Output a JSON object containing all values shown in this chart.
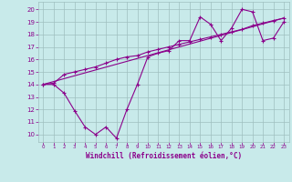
{
  "xlabel": "Windchill (Refroidissement éolien,°C)",
  "xlim": [
    -0.5,
    23.5
  ],
  "ylim": [
    9.4,
    20.6
  ],
  "xticks": [
    0,
    1,
    2,
    3,
    4,
    5,
    6,
    7,
    8,
    9,
    10,
    11,
    12,
    13,
    14,
    15,
    16,
    17,
    18,
    19,
    20,
    21,
    22,
    23
  ],
  "yticks": [
    10,
    11,
    12,
    13,
    14,
    15,
    16,
    17,
    18,
    19,
    20
  ],
  "bg_color": "#c8eaea",
  "line_color": "#8b008b",
  "grid_color": "#9fbfbf",
  "series1_x": [
    0,
    1,
    2,
    3,
    4,
    5,
    6,
    7,
    8,
    9,
    10,
    11,
    12,
    13,
    14,
    15,
    16,
    17,
    18,
    19,
    20,
    21,
    22,
    23
  ],
  "series1_y": [
    14.0,
    14.0,
    13.3,
    11.9,
    10.6,
    10.0,
    10.6,
    9.7,
    12.0,
    14.0,
    16.2,
    16.5,
    16.7,
    17.5,
    17.5,
    19.4,
    18.8,
    17.5,
    18.5,
    20.0,
    19.8,
    17.5,
    17.7,
    19.0
  ],
  "series2_x": [
    0,
    1,
    2,
    3,
    4,
    5,
    6,
    7,
    8,
    9,
    10,
    11,
    12,
    13,
    14,
    15,
    16,
    17,
    18,
    19,
    20,
    21,
    22,
    23
  ],
  "series2_y": [
    14.0,
    14.1,
    14.8,
    15.0,
    15.2,
    15.4,
    15.7,
    16.0,
    16.2,
    16.3,
    16.6,
    16.8,
    17.0,
    17.2,
    17.4,
    17.6,
    17.8,
    18.0,
    18.2,
    18.4,
    18.7,
    18.9,
    19.1,
    19.3
  ],
  "series3_x": [
    0,
    23
  ],
  "series3_y": [
    14.0,
    19.3
  ]
}
